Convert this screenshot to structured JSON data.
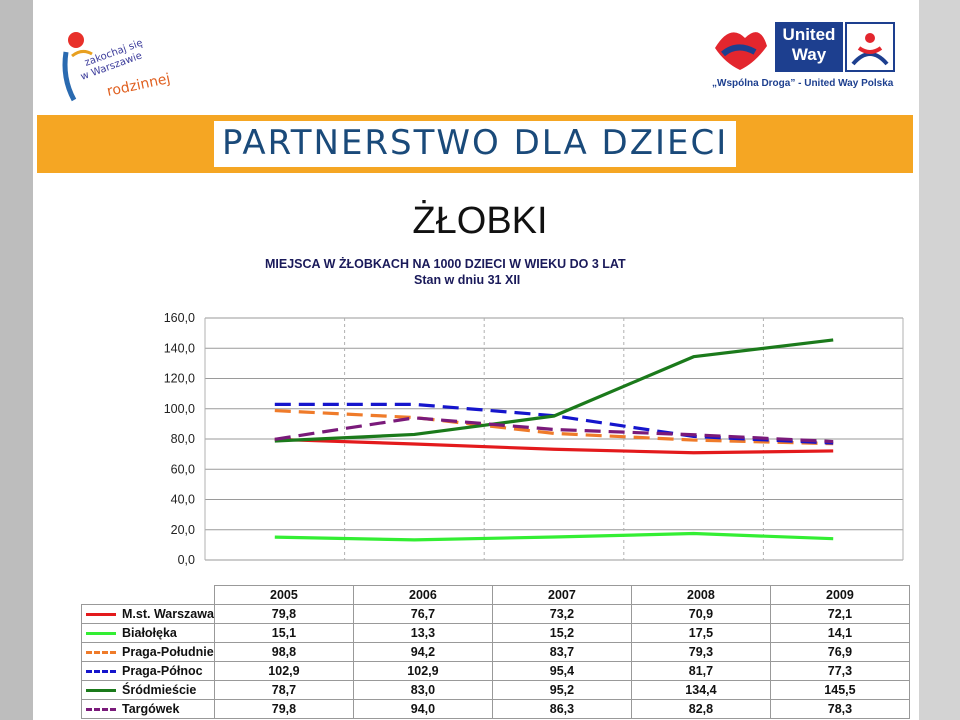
{
  "header": {
    "left_logo_alt": "Zakochaj się w Warszawie rodzinnej",
    "right_logo_title": "United Way",
    "right_logo_tagline": "„Wspólna Droga” - United Way Polska",
    "banner_text": "PARTNERSTWO DLA DZIECI"
  },
  "slide": {
    "title": "ŻŁOBKI"
  },
  "chart_data": {
    "type": "line",
    "title": "MIEJSCA W ŻŁOBKACH NA 1000 DZIECI W WIEKU DO 3 LAT",
    "subtitle": "Stan w dniu 31 XII",
    "categories": [
      "2005",
      "2006",
      "2007",
      "2008",
      "2009"
    ],
    "ylim": [
      0,
      160
    ],
    "yticks": [
      "0,0",
      "20,0",
      "40,0",
      "60,0",
      "80,0",
      "100,0",
      "120,0",
      "140,0",
      "160,0"
    ],
    "grid": true,
    "series": [
      {
        "name": "M.st. Warszawa",
        "color": "#e31a1c",
        "dashed": false,
        "values": [
          79.8,
          76.7,
          73.2,
          70.9,
          72.1
        ],
        "labels": [
          "79,8",
          "76,7",
          "73,2",
          "70,9",
          "72,1"
        ]
      },
      {
        "name": "Białołęka",
        "color": "#33ee33",
        "dashed": false,
        "values": [
          15.1,
          13.3,
          15.2,
          17.5,
          14.1
        ],
        "labels": [
          "15,1",
          "13,3",
          "15,2",
          "17,5",
          "14,1"
        ]
      },
      {
        "name": "Praga-Południe",
        "color": "#ef7b2a",
        "dashed": true,
        "values": [
          98.8,
          94.2,
          83.7,
          79.3,
          76.9
        ],
        "labels": [
          "98,8",
          "94,2",
          "83,7",
          "79,3",
          "76,9"
        ]
      },
      {
        "name": "Praga-Północ",
        "color": "#1515cc",
        "dashed": true,
        "values": [
          102.9,
          102.9,
          95.4,
          81.7,
          77.3
        ],
        "labels": [
          "102,9",
          "102,9",
          "95,4",
          "81,7",
          "77,3"
        ]
      },
      {
        "name": "Śródmieście",
        "color": "#1b7a1b",
        "dashed": false,
        "values": [
          78.7,
          83.0,
          95.2,
          134.4,
          145.5
        ],
        "labels": [
          "78,7",
          "83,0",
          "95,2",
          "134,4",
          "145,5"
        ]
      },
      {
        "name": "Targówek",
        "color": "#7a1a7a",
        "dashed": true,
        "values": [
          79.8,
          94.0,
          86.3,
          82.8,
          78.3
        ],
        "labels": [
          "79,8",
          "94,0",
          "86,3",
          "82,8",
          "78,3"
        ]
      }
    ]
  }
}
